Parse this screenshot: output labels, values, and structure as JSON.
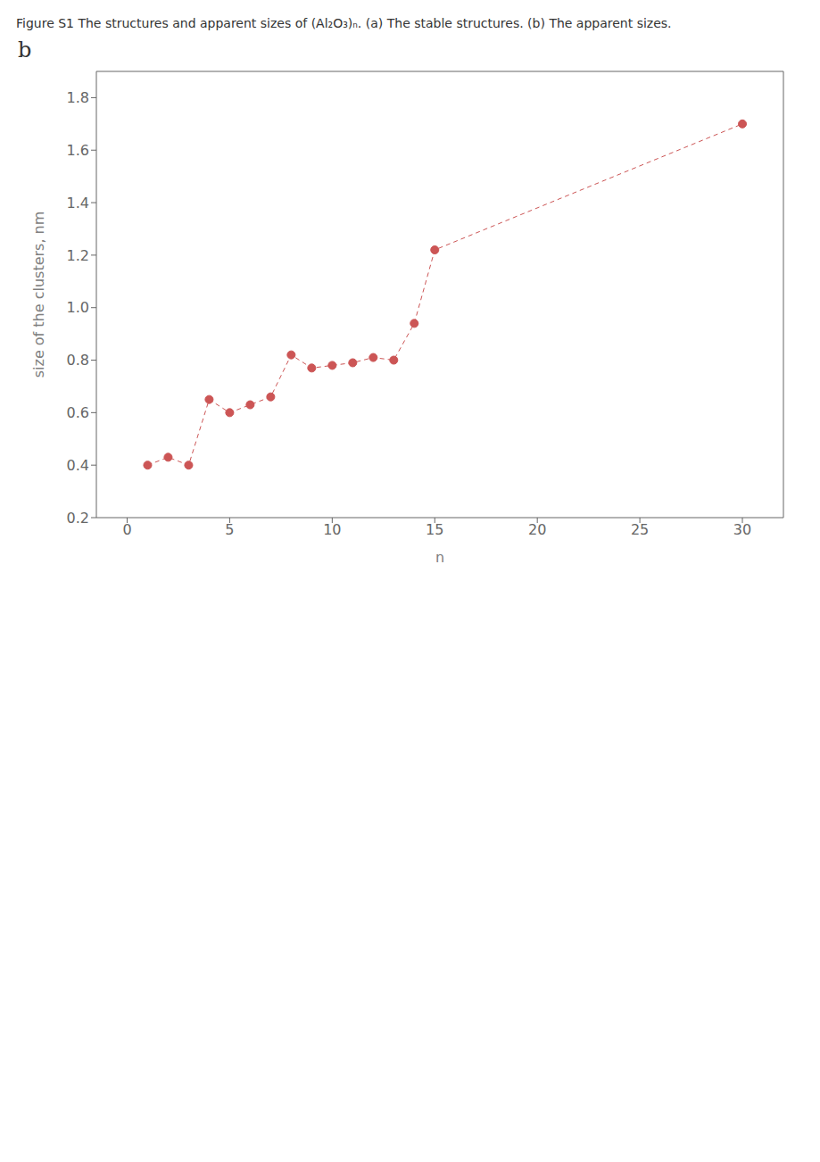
{
  "chart_data": {
    "type": "scatter",
    "title": "Figure S1 The structures and apparent sizes of (Al₂O₃)ₙ. (a) The stable structures. (b) The apparent sizes.",
    "annotations": [
      "b"
    ],
    "x_label": "n",
    "y_label": "size of the clusters, nm",
    "x": [
      1,
      2,
      3,
      4,
      5,
      6,
      7,
      8,
      9,
      10,
      11,
      12,
      13,
      14,
      15,
      30
    ],
    "values": [
      0.4,
      0.43,
      0.4,
      0.65,
      0.6,
      0.63,
      0.66,
      0.82,
      0.77,
      0.78,
      0.79,
      0.81,
      0.8,
      0.94,
      1.22,
      1.7
    ],
    "xlim": [
      -1.5,
      32
    ],
    "ylim": [
      0.2,
      1.9
    ],
    "xticks": [
      0,
      5,
      10,
      15,
      20,
      25,
      30
    ],
    "yticks": [
      0.2,
      0.4,
      0.6,
      0.8,
      {
        "value": 1.0,
        "label": "1.0"
      },
      1.2,
      1.4,
      1.6,
      1.8
    ],
    "color": "#CC5555",
    "marker": "circle",
    "line_style": "dashed",
    "grid": false
  }
}
